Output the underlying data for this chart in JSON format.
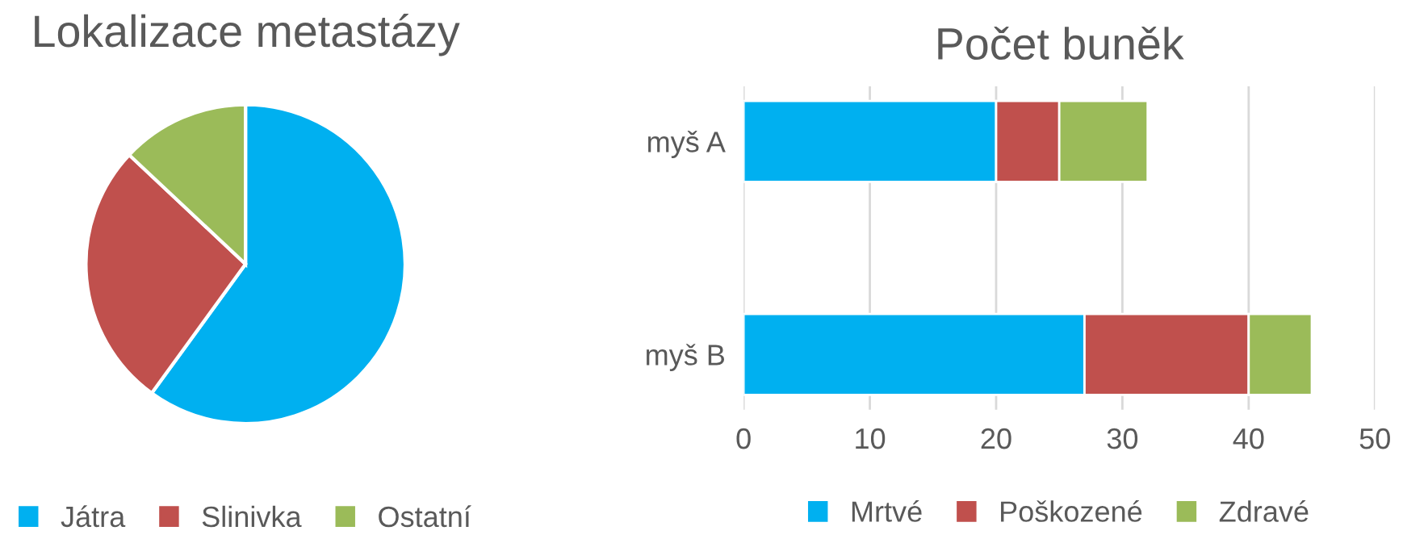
{
  "chart_data": [
    {
      "type": "pie",
      "title": "Lokalizace metastázy",
      "categories": [
        "Játra",
        "Slinivka",
        "Ostatní"
      ],
      "values": [
        60,
        27,
        13
      ],
      "colors": [
        "#00b0f0",
        "#c0504d",
        "#9bbb59"
      ],
      "legend": "bottom"
    },
    {
      "type": "bar",
      "title": "Počet buněk",
      "orientation": "horizontal",
      "stacked": true,
      "categories": [
        "myš A",
        "myš B"
      ],
      "series": [
        {
          "name": "Mrtvé",
          "color": "#00b0f0",
          "values": [
            20,
            27
          ]
        },
        {
          "name": "Poškozené",
          "color": "#c0504d",
          "values": [
            5,
            13
          ]
        },
        {
          "name": "Zdravé",
          "color": "#9bbb59",
          "values": [
            7,
            5
          ]
        }
      ],
      "xlim": [
        0,
        50
      ],
      "xticks": [
        0,
        10,
        20,
        30,
        40,
        50
      ],
      "grid": "x",
      "legend": "bottom"
    }
  ]
}
